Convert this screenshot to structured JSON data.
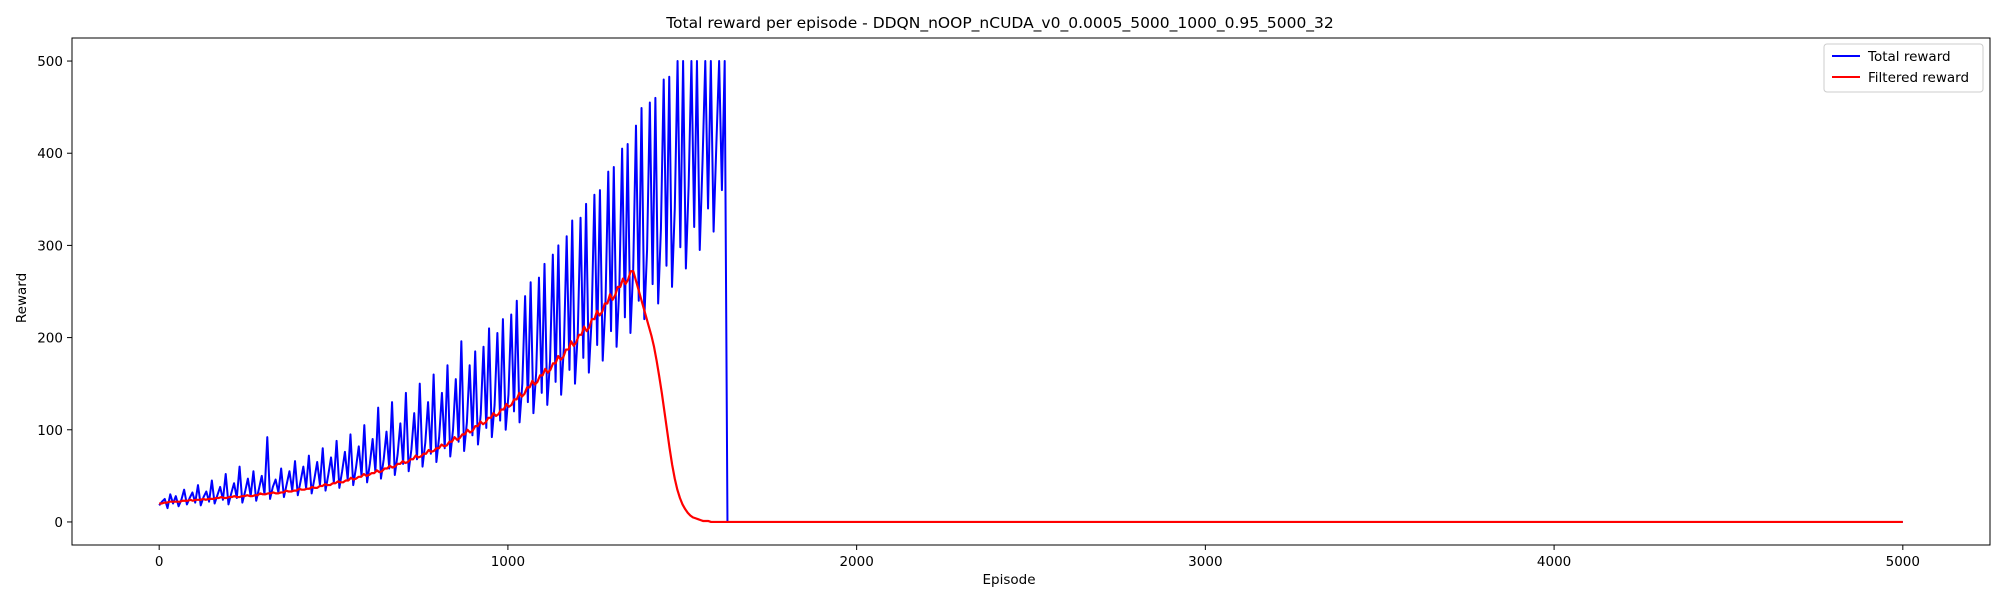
{
  "chart_data": {
    "type": "line",
    "title": "Total reward per episode - DDQN_nOOP_nCUDA_v0_0.0005_5000_1000_0.95_5000_32",
    "xlabel": "Episode",
    "ylabel": "Reward",
    "xlim": [
      -250,
      5250
    ],
    "ylim": [
      -25,
      525
    ],
    "x_ticks": [
      0,
      1000,
      2000,
      3000,
      4000,
      5000
    ],
    "y_ticks": [
      0,
      100,
      200,
      300,
      400,
      500
    ],
    "grid": false,
    "legend_position": "top-right",
    "x_range": [
      0,
      5000
    ],
    "series": [
      {
        "name": "Total reward",
        "color": "#0000ff",
        "values": [
          18,
          22,
          25,
          15,
          30,
          20,
          28,
          17,
          24,
          35,
          19,
          26,
          32,
          21,
          40,
          18,
          27,
          33,
          22,
          45,
          20,
          29,
          38,
          24,
          52,
          19,
          31,
          42,
          26,
          60,
          21,
          33,
          47,
          28,
          55,
          23,
          36,
          50,
          30,
          92,
          25,
          38,
          46,
          32,
          58,
          27,
          41,
          55,
          34,
          66,
          29,
          44,
          60,
          37,
          72,
          31,
          47,
          65,
          40,
          80,
          34,
          51,
          70,
          43,
          88,
          37,
          55,
          76,
          46,
          95,
          40,
          59,
          82,
          50,
          105,
          43,
          63,
          90,
          54,
          124,
          47,
          68,
          98,
          58,
          130,
          51,
          73,
          107,
          63,
          140,
          55,
          79,
          118,
          68,
          150,
          60,
          86,
          130,
          74,
          160,
          65,
          92,
          140,
          80,
          170,
          71,
          100,
          155,
          87,
          196,
          77,
          108,
          170,
          94,
          185,
          84,
          117,
          190,
          102,
          210,
          92,
          127,
          205,
          110,
          220,
          100,
          138,
          225,
          120,
          240,
          108,
          150,
          245,
          130,
          260,
          118,
          162,
          265,
          140,
          280,
          127,
          175,
          290,
          152,
          300,
          138,
          190,
          310,
          165,
          327,
          150,
          205,
          330,
          178,
          345,
          162,
          220,
          355,
          192,
          360,
          175,
          238,
          380,
          207,
          385,
          190,
          255,
          405,
          222,
          410,
          205,
          275,
          430,
          240,
          449,
          220,
          295,
          455,
          258,
          460,
          237,
          318,
          480,
          278,
          483,
          255,
          340,
          500,
          298,
          500,
          275,
          365,
          500,
          320,
          500,
          295,
          390,
          500,
          340,
          500,
          315,
          410,
          500,
          360,
          500,
          0,
          0,
          0,
          0,
          0,
          0,
          0,
          0,
          0,
          0,
          0,
          0,
          0,
          0,
          0,
          0,
          0,
          0,
          0,
          0,
          0,
          0,
          0,
          0,
          0,
          0,
          0,
          0,
          0,
          0,
          0,
          0,
          0,
          0,
          0,
          0,
          0,
          0,
          0,
          0,
          0,
          0,
          0,
          0,
          0,
          0,
          0,
          0,
          0,
          0,
          0,
          0,
          0,
          0,
          0,
          0,
          0,
          0,
          0,
          0,
          0,
          0,
          0,
          0,
          0,
          0,
          0,
          0,
          0,
          0,
          0,
          0,
          0,
          0,
          0,
          0,
          0,
          0,
          0,
          0,
          0,
          0,
          0,
          0,
          0,
          0,
          0,
          0,
          0,
          0,
          0,
          0,
          0,
          0,
          0,
          0,
          0,
          0,
          0,
          0,
          0,
          0,
          0,
          0,
          0,
          0,
          0,
          0,
          0,
          0,
          0,
          0,
          0,
          0,
          0,
          0,
          0,
          0,
          0,
          0,
          0,
          0,
          0,
          0,
          0,
          0,
          0,
          0,
          0,
          0,
          0,
          0,
          0,
          0,
          0,
          0,
          0,
          0,
          0,
          0,
          0,
          0,
          0,
          0,
          0,
          0,
          0,
          0,
          0,
          0,
          0,
          0,
          0,
          0,
          0,
          0,
          0,
          0,
          0,
          0,
          0,
          0,
          0,
          0,
          0,
          0,
          0,
          0,
          0,
          0,
          0,
          0,
          0,
          0,
          0,
          0,
          0,
          0,
          0,
          0,
          0,
          0,
          0,
          0,
          0,
          0,
          0,
          0,
          0,
          0,
          0,
          0,
          0,
          0,
          0,
          0,
          0,
          0,
          0,
          0,
          0,
          0,
          0,
          0,
          0,
          0,
          0,
          0,
          0,
          0,
          0,
          0,
          0,
          0,
          0,
          0,
          0,
          0,
          0,
          0,
          0,
          0,
          0,
          0,
          0,
          0,
          0,
          0,
          0,
          0,
          0,
          0,
          0,
          0,
          0,
          0,
          0,
          0,
          0,
          0,
          0,
          0,
          0,
          0,
          0,
          0,
          0,
          0,
          0,
          0,
          0,
          0,
          0,
          0,
          0,
          0,
          0,
          0,
          0,
          0,
          0,
          0,
          0,
          0,
          0,
          0,
          0,
          0,
          0,
          0,
          0,
          0,
          0,
          0,
          0,
          0,
          0,
          0,
          0,
          0,
          0,
          0,
          0,
          0,
          0,
          0,
          0,
          0,
          0,
          0,
          0,
          0,
          0,
          0,
          0,
          0,
          0,
          0,
          0,
          0,
          0,
          0,
          0,
          0,
          0,
          0,
          0,
          0,
          0,
          0,
          0,
          0,
          0,
          0,
          0,
          0,
          0,
          0,
          0,
          0,
          0,
          0,
          0,
          0,
          0,
          0,
          0,
          0,
          0,
          0,
          0,
          0,
          0,
          0,
          0,
          0,
          0,
          0,
          0,
          0,
          0,
          0,
          0,
          0,
          0,
          0,
          0,
          0,
          0,
          0,
          0,
          0,
          0,
          0,
          0,
          0,
          0,
          0,
          0,
          0,
          0,
          0,
          0,
          0,
          0,
          0,
          0,
          0,
          0,
          0,
          0,
          0,
          0,
          0,
          0,
          0,
          0,
          0,
          0,
          0,
          0,
          0,
          0,
          0,
          0,
          0,
          0,
          0,
          0,
          0,
          0,
          0,
          0,
          0,
          0,
          0,
          0,
          0,
          0,
          0,
          0,
          0,
          0,
          0,
          0,
          0,
          0,
          0,
          0,
          0,
          0,
          0,
          0,
          0,
          0,
          0,
          0,
          0,
          0,
          0,
          0,
          0,
          0,
          0,
          0
        ]
      },
      {
        "name": "Filtered reward",
        "color": "#ff0000",
        "values": [
          20,
          20,
          21,
          21,
          22,
          22,
          22,
          22,
          22,
          23,
          23,
          23,
          24,
          23,
          24,
          24,
          24,
          25,
          24,
          25,
          25,
          25,
          26,
          26,
          27,
          26,
          26,
          27,
          27,
          28,
          27,
          27,
          28,
          28,
          29,
          28,
          28,
          29,
          29,
          31,
          30,
          30,
          31,
          31,
          32,
          31,
          31,
          32,
          32,
          34,
          33,
          33,
          34,
          34,
          36,
          35,
          35,
          36,
          36,
          38,
          37,
          37,
          39,
          39,
          41,
          40,
          40,
          42,
          42,
          44,
          43,
          43,
          45,
          45,
          48,
          46,
          47,
          49,
          49,
          52,
          50,
          51,
          53,
          53,
          56,
          54,
          55,
          58,
          58,
          61,
          59,
          60,
          63,
          63,
          66,
          64,
          65,
          68,
          68,
          72,
          70,
          71,
          74,
          74,
          78,
          76,
          77,
          80,
          80,
          84,
          82,
          83,
          87,
          87,
          92,
          89,
          91,
          95,
          95,
          100,
          97,
          99,
          104,
          104,
          109,
          106,
          108,
          113,
          113,
          118,
          115,
          117,
          122,
          122,
          128,
          125,
          127,
          133,
          133,
          140,
          136,
          139,
          146,
          146,
          153,
          149,
          152,
          159,
          159,
          166,
          162,
          165,
          172,
          172,
          180,
          176,
          179,
          187,
          187,
          196,
          191,
          195,
          203,
          203,
          212,
          207,
          211,
          220,
          220,
          229,
          224,
          228,
          237,
          237,
          247,
          241,
          246,
          255,
          255,
          264,
          258,
          263,
          272,
          272,
          262,
          252,
          242,
          232,
          222,
          212,
          202,
          190,
          175,
          158,
          140,
          120,
          100,
          80,
          62,
          47,
          35,
          26,
          19,
          14,
          10,
          7,
          5,
          4,
          3,
          2,
          1,
          1,
          1,
          0,
          0,
          0,
          0,
          0,
          0,
          0,
          0,
          0,
          0,
          0,
          0,
          0,
          0,
          0,
          0,
          0,
          0,
          0,
          0,
          0,
          0,
          0,
          0,
          0,
          0,
          0,
          0,
          0,
          0,
          0,
          0,
          0,
          0,
          0,
          0,
          0,
          0,
          0,
          0,
          0,
          0,
          0,
          0,
          0,
          0,
          0,
          0,
          0,
          0,
          0,
          0,
          0,
          0,
          0,
          0,
          0,
          0,
          0,
          0,
          0,
          0,
          0,
          0,
          0,
          0,
          0,
          0,
          0,
          0,
          0,
          0,
          0,
          0,
          0,
          0,
          0,
          0,
          0,
          0,
          0,
          0,
          0,
          0,
          0,
          0,
          0,
          0,
          0,
          0,
          0,
          0,
          0,
          0,
          0,
          0,
          0,
          0,
          0,
          0,
          0,
          0,
          0,
          0,
          0,
          0,
          0,
          0,
          0,
          0,
          0,
          0,
          0,
          0,
          0,
          0,
          0,
          0,
          0,
          0,
          0,
          0,
          0,
          0,
          0,
          0,
          0,
          0,
          0,
          0,
          0,
          0,
          0,
          0,
          0,
          0,
          0,
          0,
          0,
          0,
          0,
          0,
          0,
          0,
          0,
          0,
          0,
          0,
          0,
          0,
          0,
          0,
          0,
          0,
          0,
          0,
          0,
          0,
          0,
          0,
          0,
          0,
          0,
          0,
          0,
          0,
          0,
          0,
          0,
          0,
          0,
          0,
          0,
          0,
          0,
          0,
          0,
          0,
          0,
          0,
          0,
          0,
          0,
          0,
          0,
          0,
          0,
          0,
          0,
          0,
          0,
          0,
          0,
          0,
          0,
          0,
          0,
          0,
          0,
          0,
          0,
          0,
          0,
          0,
          0,
          0,
          0,
          0,
          0,
          0,
          0,
          0,
          0,
          0,
          0,
          0,
          0,
          0,
          0,
          0,
          0,
          0,
          0,
          0,
          0,
          0,
          0,
          0,
          0,
          0,
          0,
          0,
          0,
          0,
          0,
          0,
          0,
          0,
          0,
          0,
          0,
          0,
          0,
          0,
          0,
          0,
          0,
          0,
          0,
          0,
          0,
          0,
          0,
          0,
          0,
          0,
          0,
          0,
          0,
          0,
          0,
          0,
          0,
          0,
          0,
          0,
          0,
          0,
          0,
          0,
          0,
          0,
          0,
          0,
          0,
          0,
          0,
          0,
          0,
          0,
          0,
          0,
          0,
          0,
          0,
          0,
          0,
          0,
          0,
          0,
          0,
          0,
          0,
          0,
          0,
          0,
          0,
          0,
          0,
          0,
          0,
          0,
          0,
          0,
          0,
          0,
          0,
          0,
          0,
          0,
          0,
          0,
          0,
          0,
          0,
          0,
          0,
          0,
          0,
          0,
          0,
          0,
          0,
          0,
          0,
          0,
          0,
          0,
          0,
          0,
          0,
          0,
          0,
          0,
          0,
          0,
          0,
          0,
          0,
          0,
          0,
          0,
          0,
          0,
          0,
          0,
          0,
          0,
          0,
          0,
          0,
          0,
          0,
          0,
          0,
          0,
          0,
          0,
          0,
          0,
          0,
          0,
          0,
          0,
          0,
          0,
          0,
          0,
          0,
          0,
          0,
          0,
          0,
          0,
          0,
          0,
          0,
          0,
          0,
          0,
          0,
          0,
          0,
          0,
          0,
          0,
          0,
          0,
          0,
          0,
          0,
          0,
          0,
          0,
          0,
          0,
          0,
          0,
          0,
          0,
          0,
          0,
          0,
          0,
          0,
          0,
          0,
          0,
          0,
          0,
          0,
          0,
          0,
          0,
          0,
          0,
          0,
          0,
          0,
          0,
          0,
          0,
          0,
          0,
          0,
          0,
          0,
          0,
          0,
          0,
          0,
          0,
          0,
          0,
          0,
          0,
          0,
          0,
          0,
          0,
          0,
          0,
          0,
          0,
          0,
          0,
          0,
          0,
          0,
          0,
          0,
          0,
          0,
          0,
          0,
          0,
          0,
          0,
          0,
          0,
          0
        ]
      }
    ]
  }
}
